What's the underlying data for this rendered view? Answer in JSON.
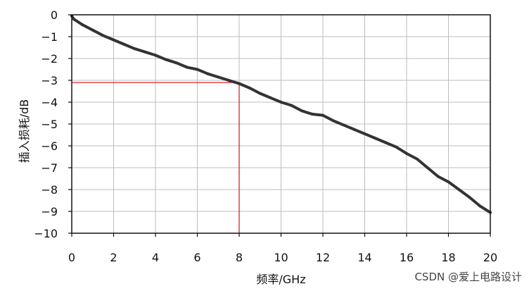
{
  "chart_data": {
    "type": "line",
    "xlabel": "频率/GHz",
    "ylabel": "插入损耗/dB",
    "xlim": [
      0,
      20
    ],
    "ylim": [
      -10,
      0
    ],
    "x_ticks": [
      0,
      2,
      4,
      6,
      8,
      10,
      12,
      14,
      16,
      18,
      20
    ],
    "y_ticks": [
      0,
      -1,
      -2,
      -3,
      -4,
      -5,
      -6,
      -7,
      -8,
      -9,
      -10
    ],
    "grid": true,
    "series": [
      {
        "color": "#333333",
        "x": [
          0,
          0.1,
          0.5,
          1,
          1.5,
          2,
          2.5,
          3,
          3.5,
          4,
          4.5,
          5,
          5.5,
          6,
          6.5,
          7,
          7.5,
          8,
          8.5,
          9,
          9.5,
          10,
          10.5,
          11,
          11.5,
          12,
          12.5,
          13,
          13.5,
          14,
          14.5,
          15,
          15.5,
          16,
          16.5,
          17,
          17.5,
          18,
          18.5,
          19,
          19.5,
          20
        ],
        "y": [
          -0.05,
          -0.2,
          -0.45,
          -0.7,
          -0.95,
          -1.15,
          -1.35,
          -1.55,
          -1.7,
          -1.85,
          -2.05,
          -2.2,
          -2.4,
          -2.5,
          -2.7,
          -2.85,
          -3.0,
          -3.15,
          -3.35,
          -3.6,
          -3.8,
          -4.0,
          -4.15,
          -4.4,
          -4.55,
          -4.6,
          -4.85,
          -5.05,
          -5.25,
          -5.45,
          -5.65,
          -5.85,
          -6.05,
          -6.35,
          -6.6,
          -7.0,
          -7.4,
          -7.65,
          -8.0,
          -8.35,
          -8.75,
          -9.05
        ]
      }
    ],
    "annotation": {
      "type": "crosshair",
      "x": 8,
      "y": -3.1,
      "color": "#e02020"
    }
  },
  "watermark": "CSDN @爱上电路设计"
}
